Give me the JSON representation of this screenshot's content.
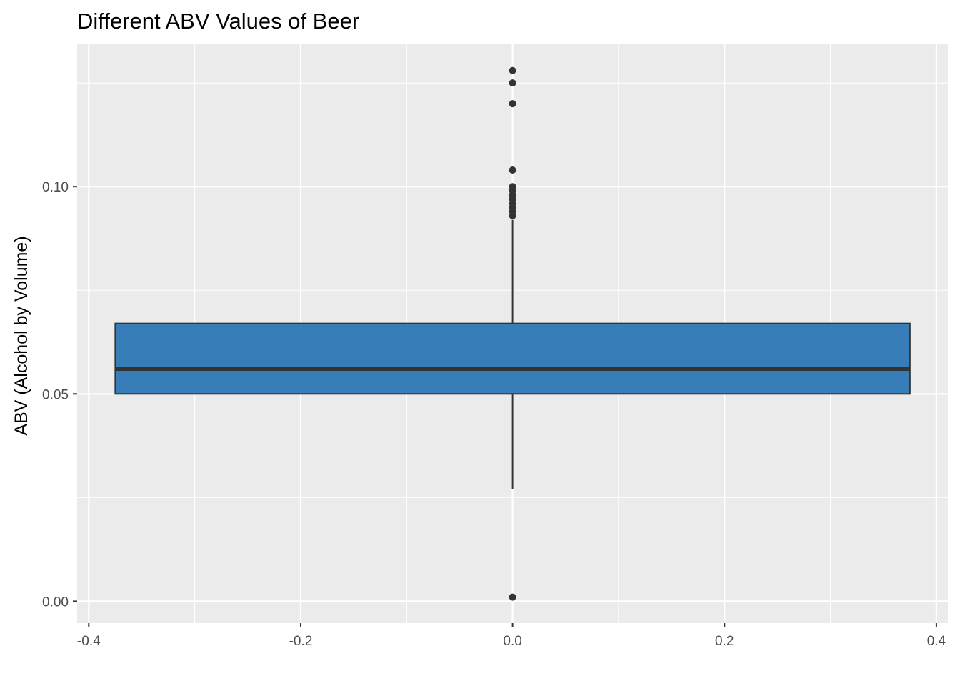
{
  "chart_data": {
    "type": "boxplot",
    "title": "Different ABV Values of Beer",
    "xlabel": "",
    "ylabel": "ABV (Alcohol by Volume)",
    "xlim": [
      -0.4,
      0.4
    ],
    "ylim": [
      0.0,
      0.128
    ],
    "x_ticks": [
      -0.4,
      -0.2,
      0.0,
      0.2,
      0.4
    ],
    "x_tick_labels": [
      "-0.4",
      "-0.2",
      "0.0",
      "0.2",
      "0.4"
    ],
    "y_ticks": [
      0.0,
      0.05,
      0.1
    ],
    "y_tick_labels": [
      "0.00",
      "0.05",
      "0.10"
    ],
    "box": {
      "x_center": 0.0,
      "x_min": -0.375,
      "x_max": 0.375,
      "q1": 0.05,
      "median": 0.056,
      "q3": 0.067,
      "whisker_low": 0.027,
      "whisker_high": 0.092
    },
    "outliers": [
      0.001,
      0.093,
      0.094,
      0.095,
      0.096,
      0.097,
      0.098,
      0.099,
      0.1,
      0.104,
      0.12,
      0.125,
      0.128
    ],
    "colors": {
      "box_fill": "#377eb8",
      "box_stroke": "#333333",
      "panel_bg": "#ebebeb",
      "grid": "#ffffff",
      "outlier": "#333333"
    },
    "grid": true,
    "legend": "none"
  }
}
